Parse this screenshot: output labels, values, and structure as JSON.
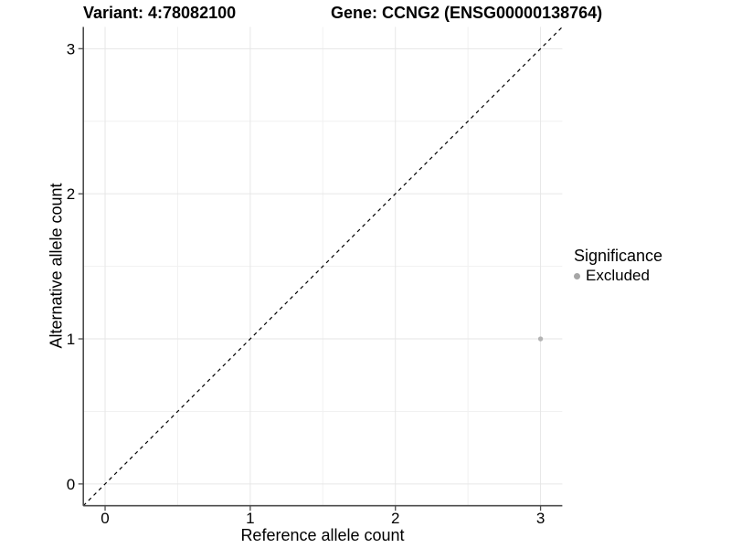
{
  "chart_data": {
    "type": "scatter",
    "title_left": "Variant: 4:78082100",
    "title_right": "Gene: CCNG2 (ENSG00000138764)",
    "xlabel": "Reference allele count",
    "ylabel": "Alternative allele count",
    "xlim": [
      -0.15,
      3.15
    ],
    "ylim": [
      -0.15,
      3.15
    ],
    "xticks": [
      0,
      1,
      2,
      3
    ],
    "yticks": [
      0,
      1,
      2,
      3
    ],
    "minor_gridlines": [
      0.5,
      1.5,
      2.5
    ],
    "grid": "on",
    "background": "#ffffff",
    "reference_line": {
      "kind": "identity",
      "style": "dashed",
      "color": "#000000",
      "x1": -0.15,
      "y1": -0.15,
      "x2": 3.15,
      "y2": 3.15
    },
    "series": [
      {
        "name": "Excluded",
        "color": "#b3b3b3",
        "points": [
          {
            "x": 3,
            "y": 1
          }
        ]
      }
    ],
    "legend": {
      "position": "right",
      "title": "Significance",
      "entries": [
        {
          "label": "Excluded",
          "color": "#a6a6a6",
          "marker": "circle"
        }
      ]
    },
    "colors": {
      "axis_line": "#4d4d4d",
      "grid_major": "#e6e6e6",
      "grid_minor": "#f1f1f1",
      "text": "#000000",
      "point": "#b3b3b3"
    }
  }
}
